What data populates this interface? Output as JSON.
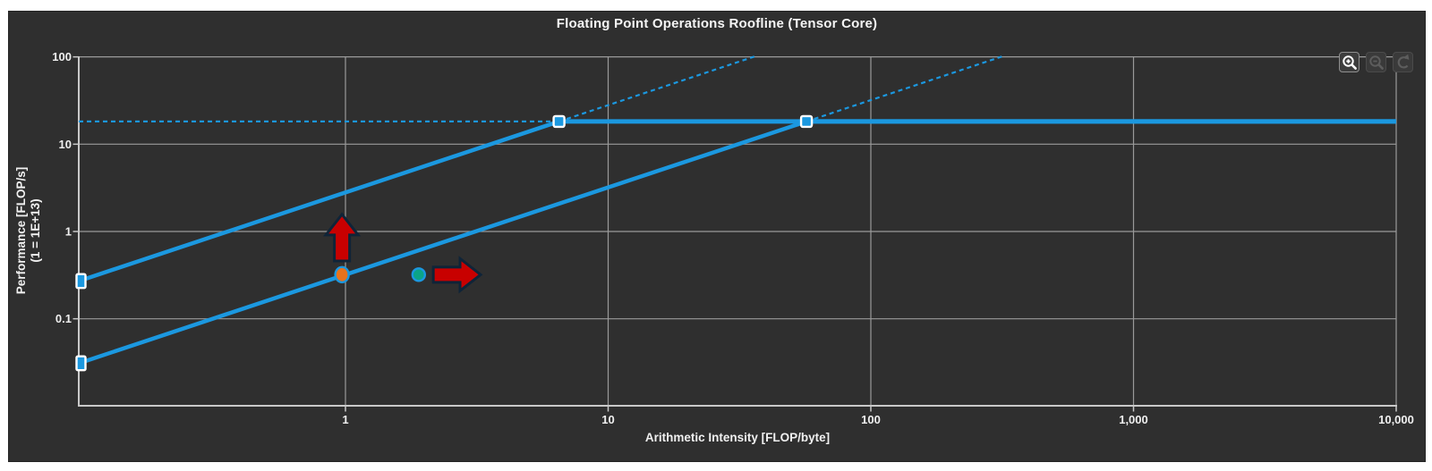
{
  "title": "Floating Point Operations Roofline (Tensor Core)",
  "toolbar": {
    "buttons": [
      {
        "name": "zoom-in",
        "icon": "magnifier-plus-icon",
        "enabled": true
      },
      {
        "name": "zoom-out",
        "icon": "magnifier-minus-icon",
        "enabled": false
      },
      {
        "name": "reset-zoom",
        "icon": "undo-rotate-icon",
        "enabled": false
      }
    ]
  },
  "chart_data": {
    "type": "line",
    "subtype": "roofline",
    "title": "Floating Point Operations Roofline (Tensor Core)",
    "axes": {
      "x": {
        "label": "Arithmetic Intensity [FLOP/byte]",
        "scale": "log",
        "min": 0.097,
        "max": 10000,
        "ticks": [
          {
            "value": 1,
            "label": "1"
          },
          {
            "value": 10,
            "label": "10"
          },
          {
            "value": 100,
            "label": "100"
          },
          {
            "value": 1000,
            "label": "1,000"
          },
          {
            "value": 10000,
            "label": "10,000"
          }
        ]
      },
      "y": {
        "label_line1": "Performance [FLOP/s]",
        "label_line2": "(1 = 1E+13)",
        "scale": "log",
        "min": 0.01,
        "max": 101.5,
        "ticks": [
          {
            "value": 0.1,
            "label": "0.1"
          },
          {
            "value": 1,
            "label": "1"
          },
          {
            "value": 10,
            "label": "10"
          },
          {
            "value": 100,
            "label": "100"
          }
        ]
      }
    },
    "grid": true,
    "legend": "none",
    "series": [
      {
        "name": "roofline-upper-bandwidth",
        "peak_performance": 18.2,
        "memory_bandwidth": 2.8,
        "ridge_ai": 6.5,
        "style": "solid-with-dashed-extensions"
      },
      {
        "name": "roofline-lower-bandwidth",
        "peak_performance": 18.2,
        "memory_bandwidth": 0.32,
        "ridge_ai": 56.9,
        "style": "solid-with-dashed-extensions"
      }
    ],
    "points": [
      {
        "name": "achieved-value-orange",
        "ai": 0.97,
        "performance": 0.32,
        "color": "#e8721c",
        "outline": "#1b98e0",
        "rx": 7.5,
        "ry": 8.5
      },
      {
        "name": "achieved-value-teal",
        "ai": 1.9,
        "performance": 0.32,
        "color": "#0ba487",
        "outline": "#1b98e0",
        "rx": 7,
        "ry": 7
      }
    ],
    "annotations": [
      {
        "name": "improvement-arrow-up",
        "type": "arrow-up",
        "ai": 0.97,
        "perf_from": 0.46,
        "perf_to": 1.57,
        "color": "#c80000",
        "outline": "#0f2438"
      },
      {
        "name": "improvement-arrow-right",
        "type": "arrow-right",
        "performance": 0.32,
        "ai_from": 2.16,
        "ai_to": 3.27,
        "color": "#c80000",
        "outline": "#0f2438"
      }
    ],
    "colors": {
      "roofline": "#1b98e0",
      "marker_fill": "#1b98e0",
      "marker_border": "#ffffff",
      "grid": "#9a9a9a",
      "axis": "#c9c9c9",
      "tick_text": "#efefef",
      "text": "#f0f0f0",
      "panel_bg": "#2f2f2f",
      "page_bg": "#ffffff",
      "disabled_icon": "#5d5d5d",
      "enabled_icon": "#ffffff"
    }
  }
}
